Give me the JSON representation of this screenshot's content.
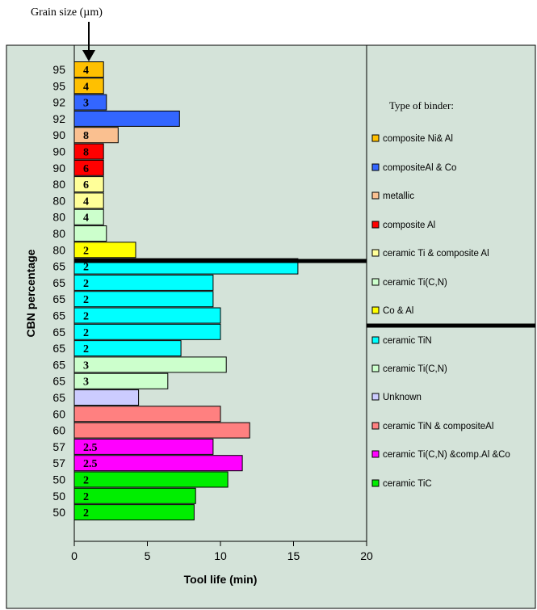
{
  "chart_data": {
    "type": "bar",
    "orientation": "horizontal",
    "annotation_top": "Grain size (µm)",
    "xlabel": "Tool life (min)",
    "ylabel": "CBN percentage",
    "xlim": [
      0,
      20
    ],
    "xticks": [
      0,
      5,
      10,
      15,
      20
    ],
    "legend_title": "Type of binder:",
    "legend_position": "right",
    "grid": false,
    "binders": [
      {
        "name": "composite Ni& Al",
        "color": "#ffc000"
      },
      {
        "name": "compositeAl & Co",
        "color": "#3366ff"
      },
      {
        "name": "metallic",
        "color": "#fac090"
      },
      {
        "name": "composite Al",
        "color": "#ff0000"
      },
      {
        "name": "ceramic Ti & composite Al",
        "color": "#ffff99"
      },
      {
        "name": "ceramic Ti(C,N)",
        "color": "#ccffcc"
      },
      {
        "name": "Co & Al",
        "color": "#ffff00"
      },
      {
        "name": "ceramic TiN",
        "color": "#00ffff"
      },
      {
        "name": "ceramic Ti(C,N)",
        "color": "#ccffcc"
      },
      {
        "name": "Unknown",
        "color": "#ccccff"
      },
      {
        "name": "ceramic TiN & compositeAl",
        "color": "#ff8080"
      },
      {
        "name": "ceramic Ti(C,N) &comp.Al &Co",
        "color": "#ff00ff"
      },
      {
        "name": "ceramic TiC",
        "color": "#00ee00"
      }
    ],
    "bars": [
      {
        "cbn": "95",
        "tool_life": 2.0,
        "grain": "4",
        "binder": 0
      },
      {
        "cbn": "95",
        "tool_life": 2.0,
        "grain": "4",
        "binder": 0
      },
      {
        "cbn": "92",
        "tool_life": 2.2,
        "grain": "3",
        "binder": 1
      },
      {
        "cbn": "92",
        "tool_life": 7.2,
        "grain": "",
        "binder": 1
      },
      {
        "cbn": "90",
        "tool_life": 3.0,
        "grain": "8",
        "binder": 2
      },
      {
        "cbn": "90",
        "tool_life": 2.0,
        "grain": "8",
        "binder": 3
      },
      {
        "cbn": "90",
        "tool_life": 2.0,
        "grain": "6",
        "binder": 3
      },
      {
        "cbn": "80",
        "tool_life": 2.0,
        "grain": "6",
        "binder": 4
      },
      {
        "cbn": "80",
        "tool_life": 2.0,
        "grain": "4",
        "binder": 4
      },
      {
        "cbn": "80",
        "tool_life": 2.0,
        "grain": "4",
        "binder": 5
      },
      {
        "cbn": "80",
        "tool_life": 2.2,
        "grain": "",
        "binder": 5
      },
      {
        "cbn": "80",
        "tool_life": 4.2,
        "grain": "2",
        "binder": 6
      },
      {
        "cbn": "65",
        "tool_life": 15.3,
        "grain": "2",
        "binder": 7
      },
      {
        "cbn": "65",
        "tool_life": 9.5,
        "grain": "2",
        "binder": 7
      },
      {
        "cbn": "65",
        "tool_life": 9.5,
        "grain": "2",
        "binder": 7
      },
      {
        "cbn": "65",
        "tool_life": 10.0,
        "grain": "2",
        "binder": 7
      },
      {
        "cbn": "65",
        "tool_life": 10.0,
        "grain": "2",
        "binder": 7
      },
      {
        "cbn": "65",
        "tool_life": 7.3,
        "grain": "2",
        "binder": 7
      },
      {
        "cbn": "65",
        "tool_life": 10.4,
        "grain": "3",
        "binder": 8
      },
      {
        "cbn": "65",
        "tool_life": 6.4,
        "grain": "3",
        "binder": 8
      },
      {
        "cbn": "65",
        "tool_life": 4.4,
        "grain": "",
        "binder": 9
      },
      {
        "cbn": "60",
        "tool_life": 10.0,
        "grain": "",
        "binder": 10
      },
      {
        "cbn": "60",
        "tool_life": 12.0,
        "grain": "",
        "binder": 10
      },
      {
        "cbn": "57",
        "tool_life": 9.5,
        "grain": "2.5",
        "binder": 11
      },
      {
        "cbn": "57",
        "tool_life": 11.5,
        "grain": "2.5",
        "binder": 11
      },
      {
        "cbn": "50",
        "tool_life": 10.5,
        "grain": "2",
        "binder": 12
      },
      {
        "cbn": "50",
        "tool_life": 8.3,
        "grain": "2",
        "binder": 12
      },
      {
        "cbn": "50",
        "tool_life": 8.2,
        "grain": "2",
        "binder": 12
      }
    ]
  }
}
